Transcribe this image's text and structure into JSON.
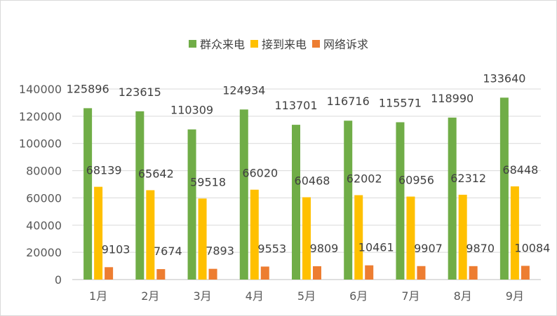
{
  "chart_data": {
    "type": "bar",
    "title": "",
    "xlabel": "",
    "ylabel": "",
    "categories": [
      "1月",
      "2月",
      "3月",
      "4月",
      "5月",
      "6月",
      "7月",
      "8月",
      "9月"
    ],
    "series": [
      {
        "name": "群众来电",
        "color": "#70ad47",
        "values": [
          125896,
          123615,
          110309,
          124934,
          113701,
          116716,
          115571,
          118990,
          133640
        ]
      },
      {
        "name": "接到来电",
        "color": "#ffc000",
        "values": [
          68139,
          65642,
          59518,
          66020,
          60468,
          62002,
          60956,
          62312,
          68448
        ]
      },
      {
        "name": "网络诉求",
        "color": "#ed7d31",
        "values": [
          9103,
          7674,
          7893,
          9553,
          9809,
          10461,
          9907,
          9870,
          10084
        ]
      }
    ],
    "ylim": [
      0,
      140000
    ],
    "yticks": [
      0,
      20000,
      40000,
      60000,
      80000,
      100000,
      120000,
      140000
    ],
    "grid": true,
    "legend_position": "top-center",
    "data_labels": true
  }
}
